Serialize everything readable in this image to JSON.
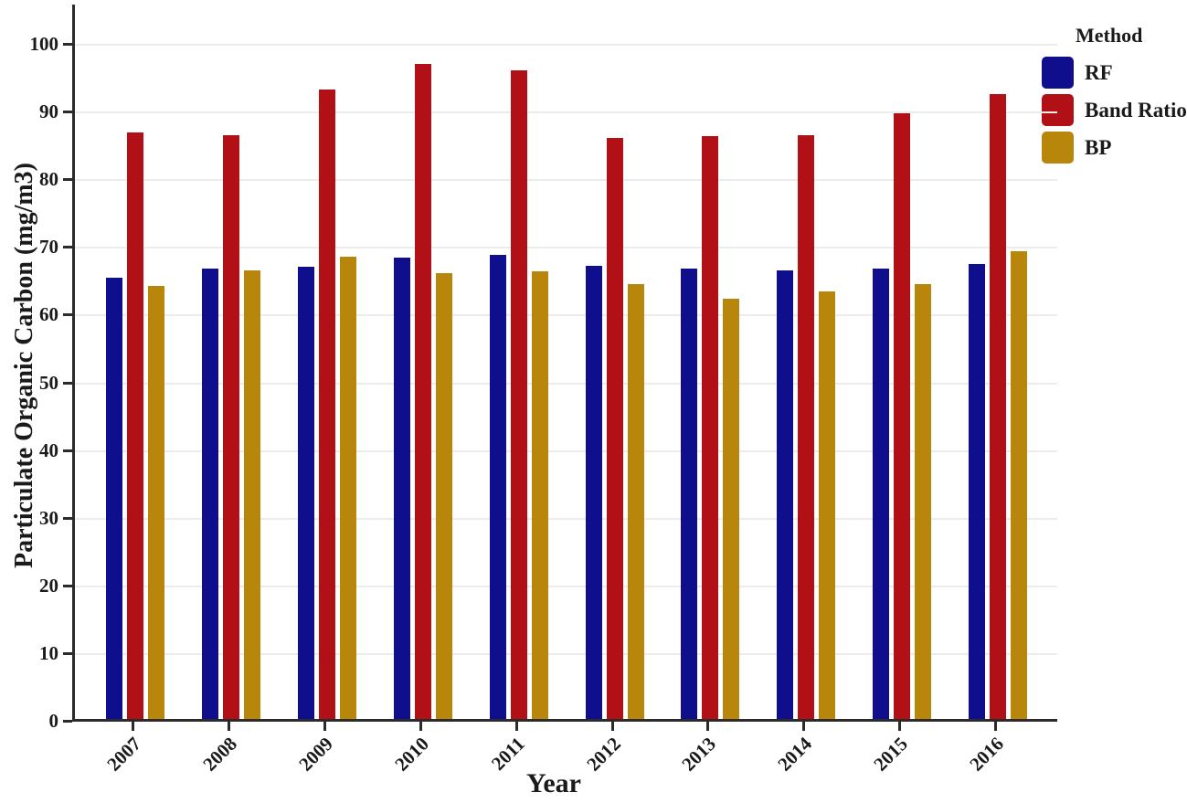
{
  "chart_data": {
    "type": "bar",
    "title": "",
    "xlabel": "Year",
    "ylabel": "Particulate Organic Carbon (mg/m3)",
    "categories": [
      "2007",
      "2008",
      "2009",
      "2010",
      "2011",
      "2012",
      "2013",
      "2014",
      "2015",
      "2016"
    ],
    "series": [
      {
        "name": "RF",
        "color": "#0f0f8e",
        "values": [
          65.2,
          66.5,
          66.8,
          68.2,
          68.6,
          67.0,
          66.6,
          66.3,
          66.6,
          67.2
        ]
      },
      {
        "name": "Band Ratio",
        "color": "#b11116",
        "values": [
          86.6,
          86.3,
          93.0,
          96.7,
          95.8,
          85.8,
          86.1,
          86.3,
          89.5,
          92.3
        ]
      },
      {
        "name": "BP",
        "color": "#b8860b",
        "values": [
          64.0,
          66.2,
          68.3,
          65.8,
          66.1,
          64.2,
          62.1,
          63.1,
          64.2,
          69.1
        ]
      }
    ],
    "ylim": [
      0,
      106
    ],
    "yticks": [
      0,
      10,
      20,
      30,
      40,
      50,
      60,
      70,
      80,
      90,
      100
    ],
    "grid": "horizontal",
    "legend_title": "Method",
    "legend_position": "top-right-outside",
    "colors": {
      "axis": "#2b2b2b",
      "gridline": "#ececec",
      "background": "#ffffff"
    }
  }
}
